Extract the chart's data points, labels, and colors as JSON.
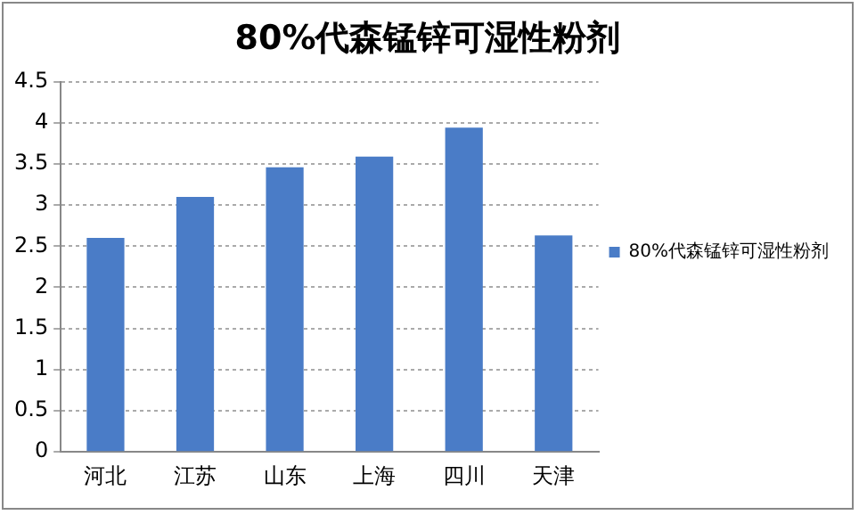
{
  "chart_data": {
    "type": "bar",
    "title": "80%代森锰锌可湿性粉剂",
    "categories": [
      "河北",
      "江苏",
      "山东",
      "上海",
      "四川",
      "天津"
    ],
    "series": [
      {
        "name": "80%代森锰锌可湿性粉剂",
        "color": "#4a7cc7",
        "values": [
          2.6,
          3.1,
          3.46,
          3.59,
          3.94,
          2.63
        ]
      }
    ],
    "ylim": [
      0,
      4.5
    ],
    "yticks": [
      0,
      0.5,
      1,
      1.5,
      2,
      2.5,
      3,
      3.5,
      4,
      4.5
    ],
    "grid": "y",
    "legend": "right"
  }
}
